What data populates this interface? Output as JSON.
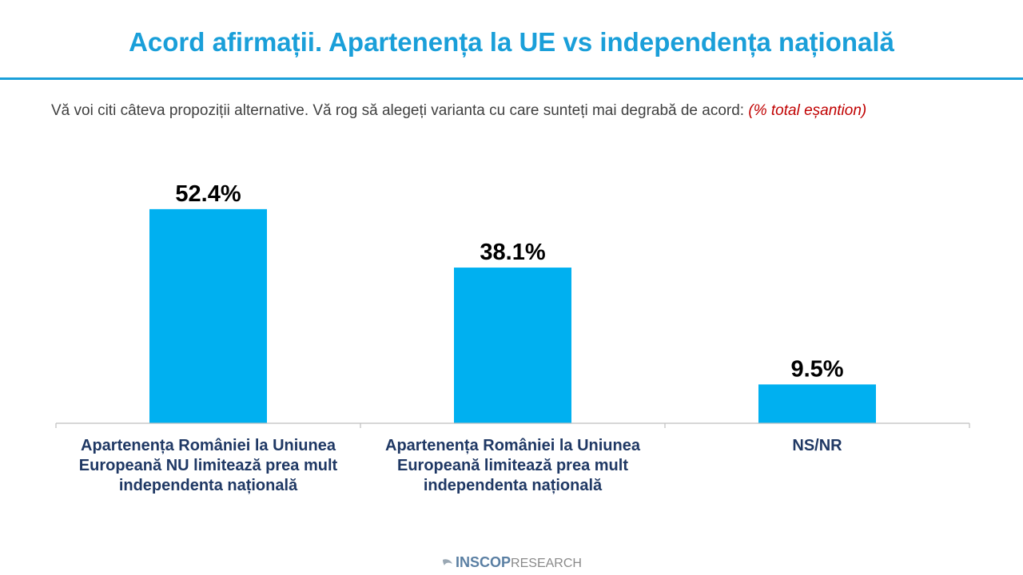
{
  "header": {
    "title": "Acord afirmații. Apartenența la UE vs independența națională"
  },
  "question": {
    "text": "Vă voi citi câteva propoziții alternative. Vă rog să alegeți varianta cu care sunteți mai degrabă de acord:",
    "note": "(% total eșantion)"
  },
  "chart_data": {
    "type": "bar",
    "title": "Acord afirmații. Apartenența la UE vs independența națională",
    "categories": [
      "Apartenența României la Uniunea Europeană NU limitează prea mult independenta națională",
      "Apartenența României la Uniunea Europeană limitează prea mult independenta națională",
      "NS/NR"
    ],
    "values": [
      52.4,
      38.1,
      9.5
    ],
    "value_labels": [
      "52.4%",
      "38.1%",
      "9.5%"
    ],
    "ylim": [
      0,
      60
    ],
    "grid": false,
    "bar_color": "#00b0f0"
  },
  "footer": {
    "brand_strong": "INSCOP",
    "brand_light": "RESEARCH"
  },
  "colors": {
    "title": "#1a9fd9",
    "category_label": "#1f3864",
    "note": "#c00000"
  }
}
